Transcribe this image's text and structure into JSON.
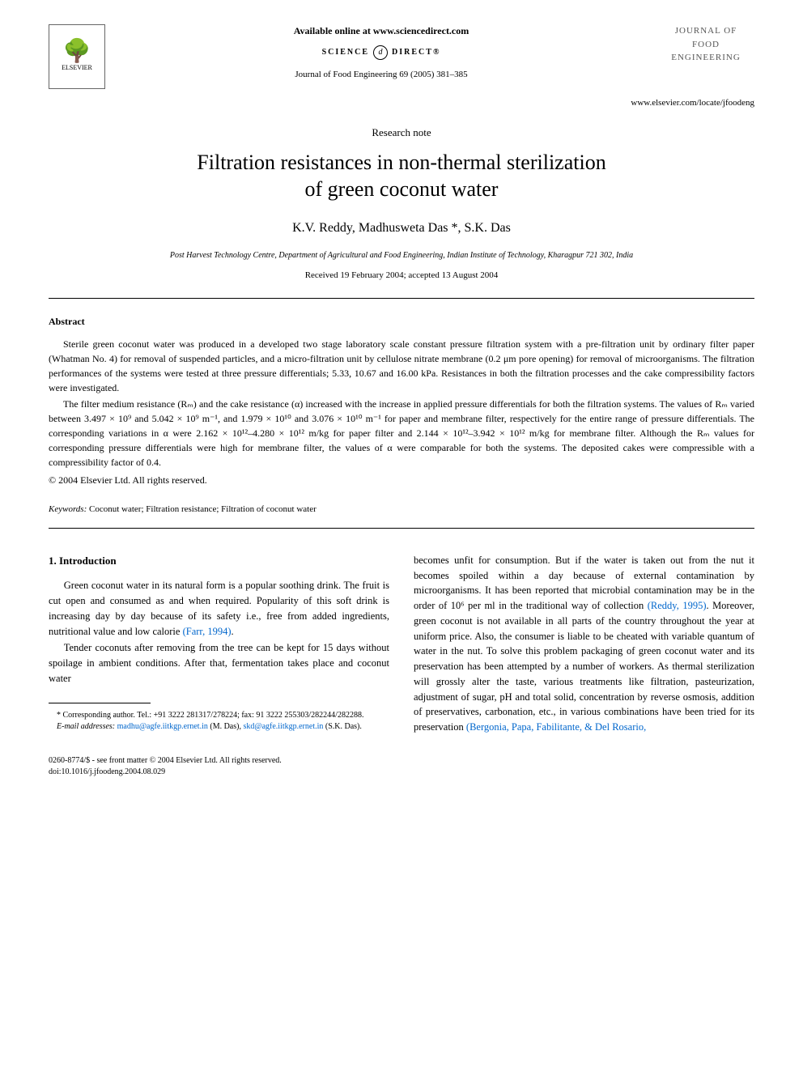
{
  "header": {
    "available_online": "Available online at www.sciencedirect.com",
    "science_direct_left": "SCIENCE",
    "science_direct_symbol": "d",
    "science_direct_right": "DIRECT®",
    "journal_ref": "Journal of Food Engineering 69 (2005) 381–385",
    "elsevier_name": "ELSEVIER",
    "journal_title_line1": "JOURNAL OF",
    "journal_title_line2": "FOOD",
    "journal_title_line3": "ENGINEERING",
    "locate_url": "www.elsevier.com/locate/jfoodeng"
  },
  "article": {
    "type": "Research note",
    "title_line1": "Filtration resistances in non-thermal sterilization",
    "title_line2": "of green coconut water",
    "authors": "K.V. Reddy, Madhusweta Das *, S.K. Das",
    "affiliation": "Post Harvest Technology Centre, Department of Agricultural and Food Engineering, Indian Institute of Technology, Kharagpur 721 302, India",
    "dates": "Received 19 February 2004; accepted 13 August 2004"
  },
  "abstract": {
    "heading": "Abstract",
    "para1": "Sterile green coconut water was produced in a developed two stage laboratory scale constant pressure filtration system with a pre-filtration unit by ordinary filter paper (Whatman No. 4) for removal of suspended particles, and a micro-filtration unit by cellulose nitrate membrane (0.2 μm pore opening) for removal of microorganisms. The filtration performances of the systems were tested at three pressure differentials; 5.33, 10.67 and 16.00 kPa. Resistances in both the filtration processes and the cake compressibility factors were investigated.",
    "para2": "The filter medium resistance (Rₘ) and the cake resistance (α) increased with the increase in applied pressure differentials for both the filtration systems. The values of Rₘ varied between 3.497 × 10⁹ and 5.042 × 10⁹ m⁻¹, and 1.979 × 10¹⁰ and 3.076 × 10¹⁰ m⁻¹ for paper and membrane filter, respectively for the entire range of pressure differentials. The corresponding variations in α were 2.162 × 10¹²–4.280 × 10¹² m/kg for paper filter and 2.144 × 10¹²–3.942 × 10¹² m/kg for membrane filter. Although the Rₘ values for corresponding pressure differentials were high for membrane filter, the values of α were comparable for both the systems. The deposited cakes were compressible with a compressibility factor of 0.4.",
    "copyright": "© 2004 Elsevier Ltd. All rights reserved."
  },
  "keywords": {
    "label": "Keywords:",
    "text": " Coconut water; Filtration resistance; Filtration of coconut water"
  },
  "intro": {
    "heading": "1. Introduction",
    "left_para1": "Green coconut water in its natural form is a popular soothing drink. The fruit is cut open and consumed as and when required. Popularity of this soft drink is increasing day by day because of its safety i.e., free from added ingredients, nutritional value and low calorie ",
    "left_cite1": "(Farr, 1994)",
    "left_para1_end": ".",
    "left_para2": "Tender coconuts after removing from the tree can be kept for 15 days without spoilage in ambient conditions. After that, fermentation takes place and coconut water",
    "right_para1_start": "becomes unfit for consumption. But if the water is taken out from the nut it becomes spoiled within a day because of external contamination by microorganisms. It has been reported that microbial contamination may be in the order of 10⁶ per ml in the traditional way of collection ",
    "right_cite1": "(Reddy, 1995)",
    "right_para1_mid": ". Moreover, green coconut is not available in all parts of the country throughout the year at uniform price. Also, the consumer is liable to be cheated with variable quantum of water in the nut. To solve this problem packaging of green coconut water and its preservation has been attempted by a number of workers. As thermal sterilization will grossly alter the taste, various treatments like filtration, pasteurization, adjustment of sugar, pH and total solid, concentration by reverse osmosis, addition of preservatives, carbonation, etc., in various combinations have been tried for its preservation ",
    "right_cite2": "(Bergonia, Papa, Fabilitante, & Del Rosario,"
  },
  "footnote": {
    "corresponding": "* Corresponding author. Tel.: +91 3222 281317/278224; fax: 91 3222 255303/282244/282288.",
    "email_label": "E-mail addresses:",
    "email1": "madhu@agfe.iitkgp.ernet.in",
    "email1_name": " (M. Das), ",
    "email2": "skd@agfe.iitkgp.ernet.in",
    "email2_name": " (S.K. Das)."
  },
  "footer": {
    "issn": "0260-8774/$ - see front matter © 2004 Elsevier Ltd. All rights reserved.",
    "doi": "doi:10.1016/j.jfoodeng.2004.08.029"
  }
}
